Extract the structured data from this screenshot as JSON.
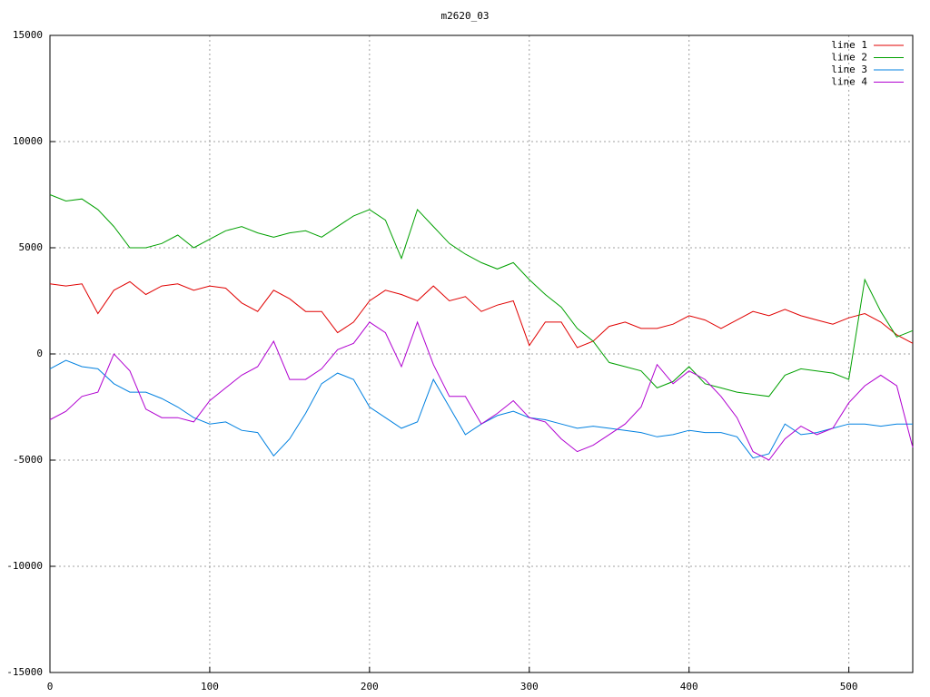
{
  "chart_data": {
    "type": "line",
    "title": "m2620_03",
    "x": [
      0,
      10,
      20,
      30,
      40,
      50,
      60,
      70,
      80,
      90,
      100,
      110,
      120,
      130,
      140,
      150,
      160,
      170,
      180,
      190,
      200,
      210,
      220,
      230,
      240,
      250,
      260,
      270,
      280,
      290,
      300,
      310,
      320,
      330,
      340,
      350,
      360,
      370,
      380,
      390,
      400,
      410,
      420,
      430,
      440,
      450,
      460,
      470,
      480,
      490,
      500,
      510,
      520,
      530,
      540
    ],
    "series": [
      {
        "name": "line 1",
        "color": "#e00000",
        "values": [
          3300,
          3200,
          3300,
          1900,
          3000,
          3400,
          2800,
          3200,
          3300,
          3000,
          3200,
          3100,
          2400,
          2000,
          3000,
          2600,
          2000,
          2000,
          1000,
          1500,
          2500,
          3000,
          2800,
          2500,
          3200,
          2500,
          2700,
          2000,
          2300,
          2500,
          400,
          1500,
          1500,
          300,
          600,
          1300,
          1500,
          1200,
          1200,
          1400,
          1800,
          1600,
          1200,
          1600,
          2000,
          1800,
          2100,
          1800,
          1600,
          1400,
          1700,
          1900,
          1500,
          900,
          500
        ]
      },
      {
        "name": "line 2",
        "color": "#00a000",
        "values": [
          7500,
          7200,
          7300,
          6800,
          6000,
          5000,
          5000,
          5200,
          5600,
          5000,
          5400,
          5800,
          6000,
          5700,
          5500,
          5700,
          5800,
          5500,
          6000,
          6500,
          6800,
          6300,
          4500,
          6800,
          6000,
          5200,
          4700,
          4300,
          4000,
          4300,
          3500,
          2800,
          2200,
          1200,
          600,
          -400,
          -600,
          -800,
          -1600,
          -1300,
          -600,
          -1400,
          -1600,
          -1800,
          -1900,
          -2000,
          -1000,
          -700,
          -800,
          -900,
          -1200,
          3500,
          2000,
          800,
          1100
        ]
      },
      {
        "name": "line 3",
        "color": "#0080e0",
        "values": [
          -700,
          -300,
          -600,
          -700,
          -1400,
          -1800,
          -1800,
          -2100,
          -2500,
          -3000,
          -3300,
          -3200,
          -3600,
          -3700,
          -4800,
          -4000,
          -2800,
          -1400,
          -900,
          -1200,
          -2500,
          -3000,
          -3500,
          -3200,
          -1200,
          -2500,
          -3800,
          -3300,
          -2900,
          -2700,
          -3000,
          -3100,
          -3300,
          -3500,
          -3400,
          -3500,
          -3600,
          -3700,
          -3900,
          -3800,
          -3600,
          -3700,
          -3700,
          -3900,
          -4900,
          -4700,
          -3300,
          -3800,
          -3700,
          -3500,
          -3300,
          -3300,
          -3400,
          -3300,
          -3300
        ]
      },
      {
        "name": "line 4",
        "color": "#b000d0",
        "values": [
          -3100,
          -2700,
          -2000,
          -1800,
          0,
          -800,
          -2600,
          -3000,
          -3000,
          -3200,
          -2200,
          -1600,
          -1000,
          -600,
          600,
          -1200,
          -1200,
          -700,
          200,
          500,
          1500,
          1000,
          -600,
          1500,
          -500,
          -2000,
          -2000,
          -3300,
          -2800,
          -2200,
          -3000,
          -3200,
          -4000,
          -4600,
          -4300,
          -3800,
          -3300,
          -2500,
          -500,
          -1400,
          -800,
          -1200,
          -2000,
          -3000,
          -4600,
          -5000,
          -4000,
          -3400,
          -3800,
          -3500,
          -2300,
          -1500,
          -1000,
          -1500,
          -4400
        ]
      }
    ],
    "xlim": [
      0,
      540
    ],
    "xticks": [
      0,
      100,
      200,
      300,
      400,
      500
    ],
    "ylim": [
      -15000,
      15000
    ],
    "yticks": [
      -15000,
      -10000,
      -5000,
      0,
      5000,
      10000,
      15000
    ],
    "grid": true,
    "legend": "top-right"
  }
}
